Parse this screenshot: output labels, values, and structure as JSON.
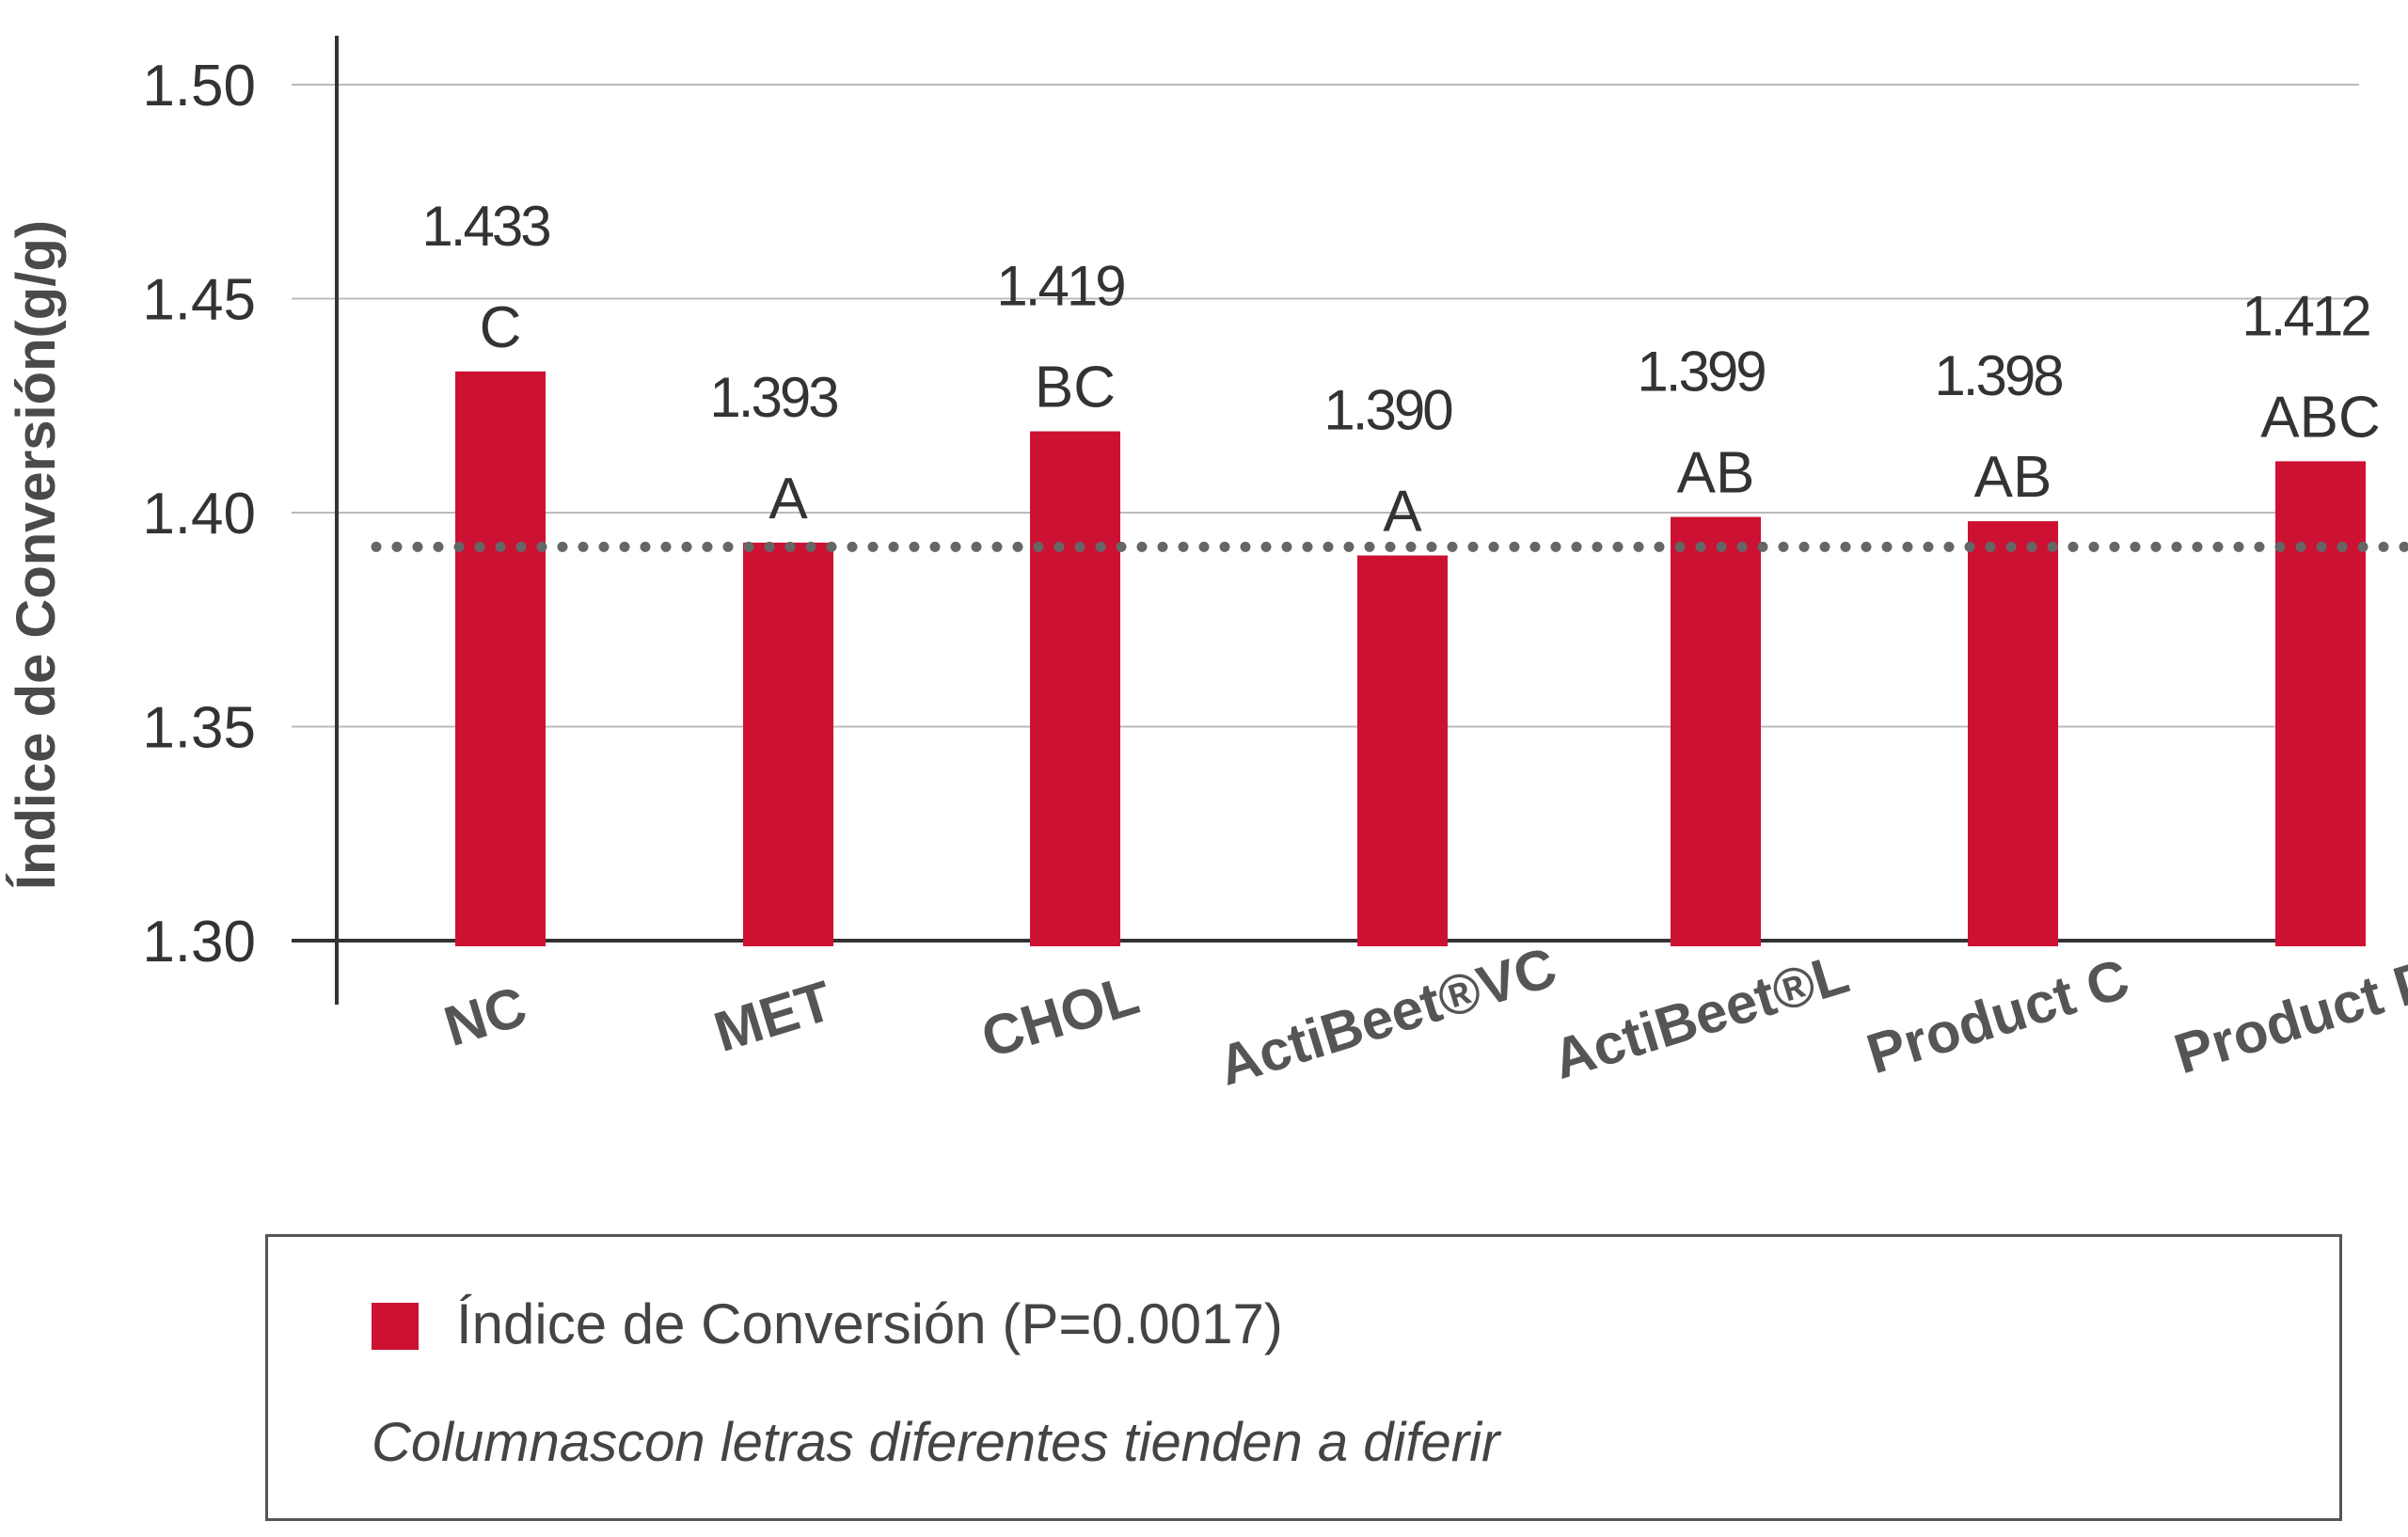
{
  "chart_data": {
    "type": "bar",
    "ylabel": "Índice de Conversión(g/g)",
    "ylim": [
      1.3,
      1.5
    ],
    "yticks": [
      "1.50",
      "1.45",
      "1.40",
      "1.35",
      "1.30"
    ],
    "grid": true,
    "categories": [
      "NC",
      "MET",
      "CHOL",
      "ActiBeet®VC",
      "ActiBeet®L",
      "Product C",
      "Product D"
    ],
    "values": [
      1.433,
      1.393,
      1.419,
      1.39,
      1.399,
      1.398,
      1.412
    ],
    "value_labels": [
      "1.433",
      "1.393",
      "1.419",
      "1.390",
      "1.399",
      "1.398",
      "1.412"
    ],
    "letters": [
      "C",
      "A",
      "BC",
      "A",
      "AB",
      "AB",
      "ABC"
    ],
    "reference_line": 1.392,
    "bar_color": "#cc1133",
    "reference_color": "#666666"
  },
  "legend": {
    "label": "Índice de Conversión (P=0.0017)",
    "note": "Columnascon letras diferentes tienden a diferir"
  }
}
